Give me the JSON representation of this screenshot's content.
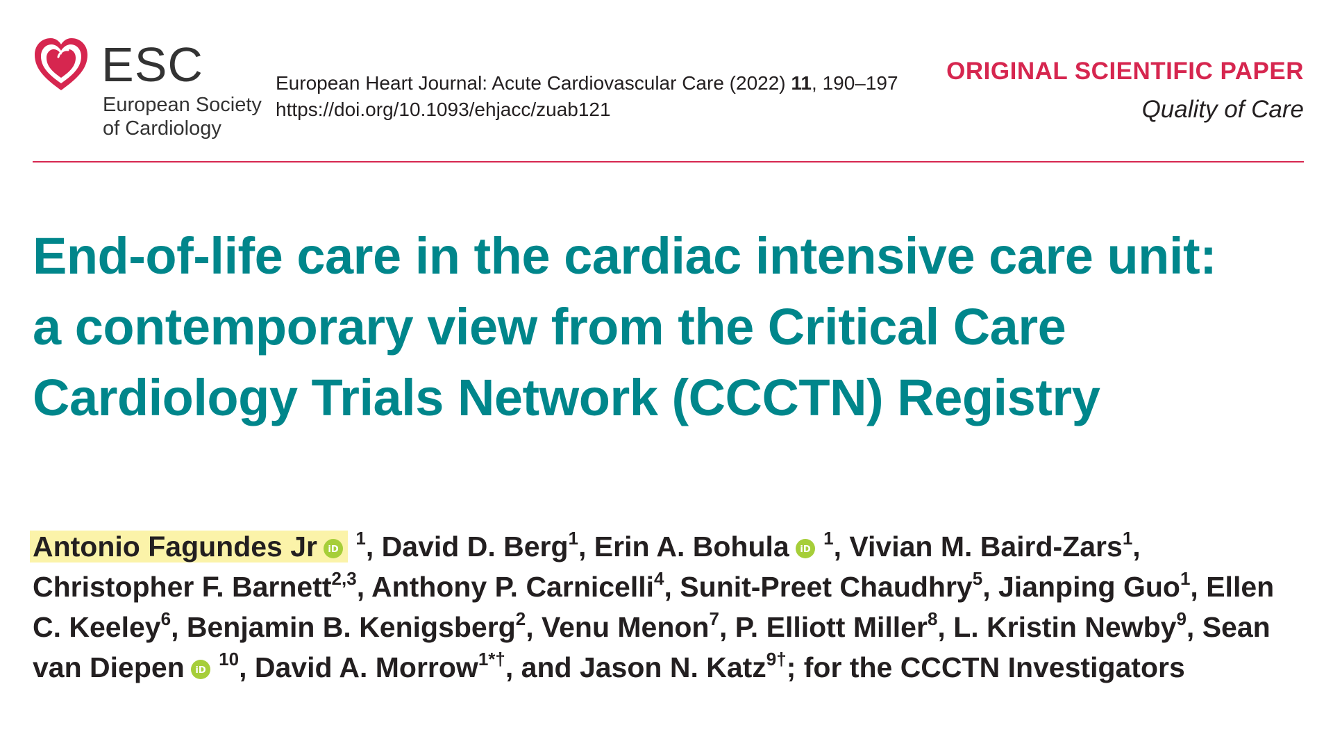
{
  "header": {
    "logo": {
      "icon": "esc-heart-logo-icon",
      "brand_color": "#d6264f",
      "wordmark": "ESC",
      "subtitle_line1": "European Society",
      "subtitle_line2": "of Cardiology"
    },
    "journal": {
      "name": "European Heart Journal: Acute Cardiovascular Care (2022)",
      "volume": "11",
      "pages": ", 190–197",
      "doi": "https://doi.org/10.1093/ehjacc/zuab121"
    },
    "paper_type": "ORIGINAL SCIENTIFIC PAPER",
    "section": "Quality of Care"
  },
  "title": "End-of-life care in the cardiac intensive care unit: a contemporary view from the Critical Care Cardiology Trials Network (CCCTN) Registry",
  "title_color": "#00868b",
  "highlight_color": "#fbf3a9",
  "orcid_color": "#a6ce39",
  "authors": [
    {
      "name": "Antonio Fagundes  Jr",
      "orcid": true,
      "sup": "1",
      "sep": ", "
    },
    {
      "name": "David D. Berg",
      "orcid": false,
      "sup": "1",
      "sep": ", "
    },
    {
      "name": "Erin A. Bohula",
      "orcid": true,
      "sup": "1",
      "sep": ", "
    },
    {
      "name": "Vivian M. Baird-Zars",
      "orcid": false,
      "sup": "1",
      "sep": ", "
    },
    {
      "name": "Christopher F. Barnett",
      "orcid": false,
      "sup": "2,3",
      "sep": ", "
    },
    {
      "name": "Anthony P. Carnicelli",
      "orcid": false,
      "sup": "4",
      "sep": ", "
    },
    {
      "name": "Sunit-Preet Chaudhry",
      "orcid": false,
      "sup": "5",
      "sep": ", "
    },
    {
      "name": "Jianping Guo",
      "orcid": false,
      "sup": "1",
      "sep": ", "
    },
    {
      "name": "Ellen C. Keeley",
      "orcid": false,
      "sup": "6",
      "sep": ", "
    },
    {
      "name": "Benjamin B. Kenigsberg",
      "orcid": false,
      "sup": "2",
      "sep": ", "
    },
    {
      "name": "Venu Menon",
      "orcid": false,
      "sup": "7",
      "sep": ", "
    },
    {
      "name": "P. Elliott Miller",
      "orcid": false,
      "sup": "8",
      "sep": ", "
    },
    {
      "name": "L. Kristin Newby",
      "orcid": false,
      "sup": "9",
      "sep": ", "
    },
    {
      "name": "Sean van Diepen",
      "orcid": true,
      "sup": "10",
      "sep": ", "
    },
    {
      "name": "David A. Morrow",
      "orcid": false,
      "sup": "1*†",
      "sep": ", and "
    },
    {
      "name": "Jason N. Katz",
      "orcid": false,
      "sup": "9†",
      "sep": "; for the CCCTN Investigators"
    }
  ]
}
